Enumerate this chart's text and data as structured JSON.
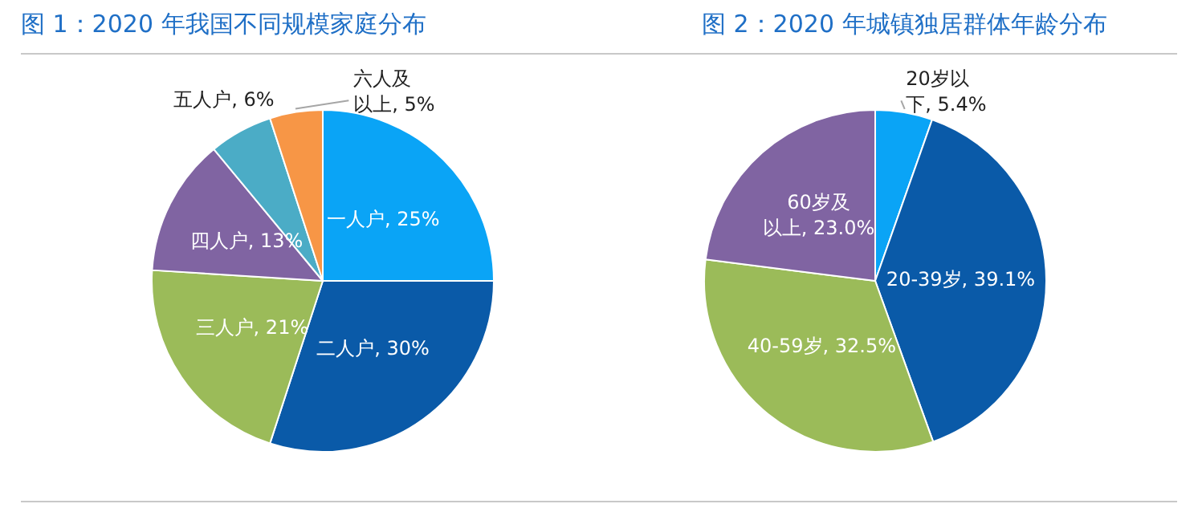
{
  "chart_data": [
    {
      "type": "pie",
      "title": "图 1：2020 年我国不同规模家庭分布",
      "categories": [
        "一人户",
        "二人户",
        "三人户",
        "四人户",
        "五人户",
        "六人及以上"
      ],
      "values": [
        25,
        30,
        21,
        13,
        6,
        5
      ],
      "value_labels": [
        "25%",
        "30%",
        "21%",
        "13%",
        "6%",
        "5%"
      ],
      "colors": [
        "#0aa4f6",
        "#0a5aa8",
        "#9bbb59",
        "#8064a2",
        "#4bacc6",
        "#f79646"
      ],
      "legend": false
    },
    {
      "type": "pie",
      "title": "图 2：2020 年城镇独居群体年龄分布",
      "categories": [
        "20岁以下",
        "20-39岁",
        "40-59岁",
        "60岁及以上"
      ],
      "values": [
        5.4,
        39.1,
        32.5,
        23.0
      ],
      "value_labels": [
        "5.4%",
        "39.1%",
        "32.5%",
        "23.0%"
      ],
      "colors": [
        "#0aa4f6",
        "#0a5aa8",
        "#9bbb59",
        "#8064a2"
      ],
      "legend": false
    }
  ]
}
